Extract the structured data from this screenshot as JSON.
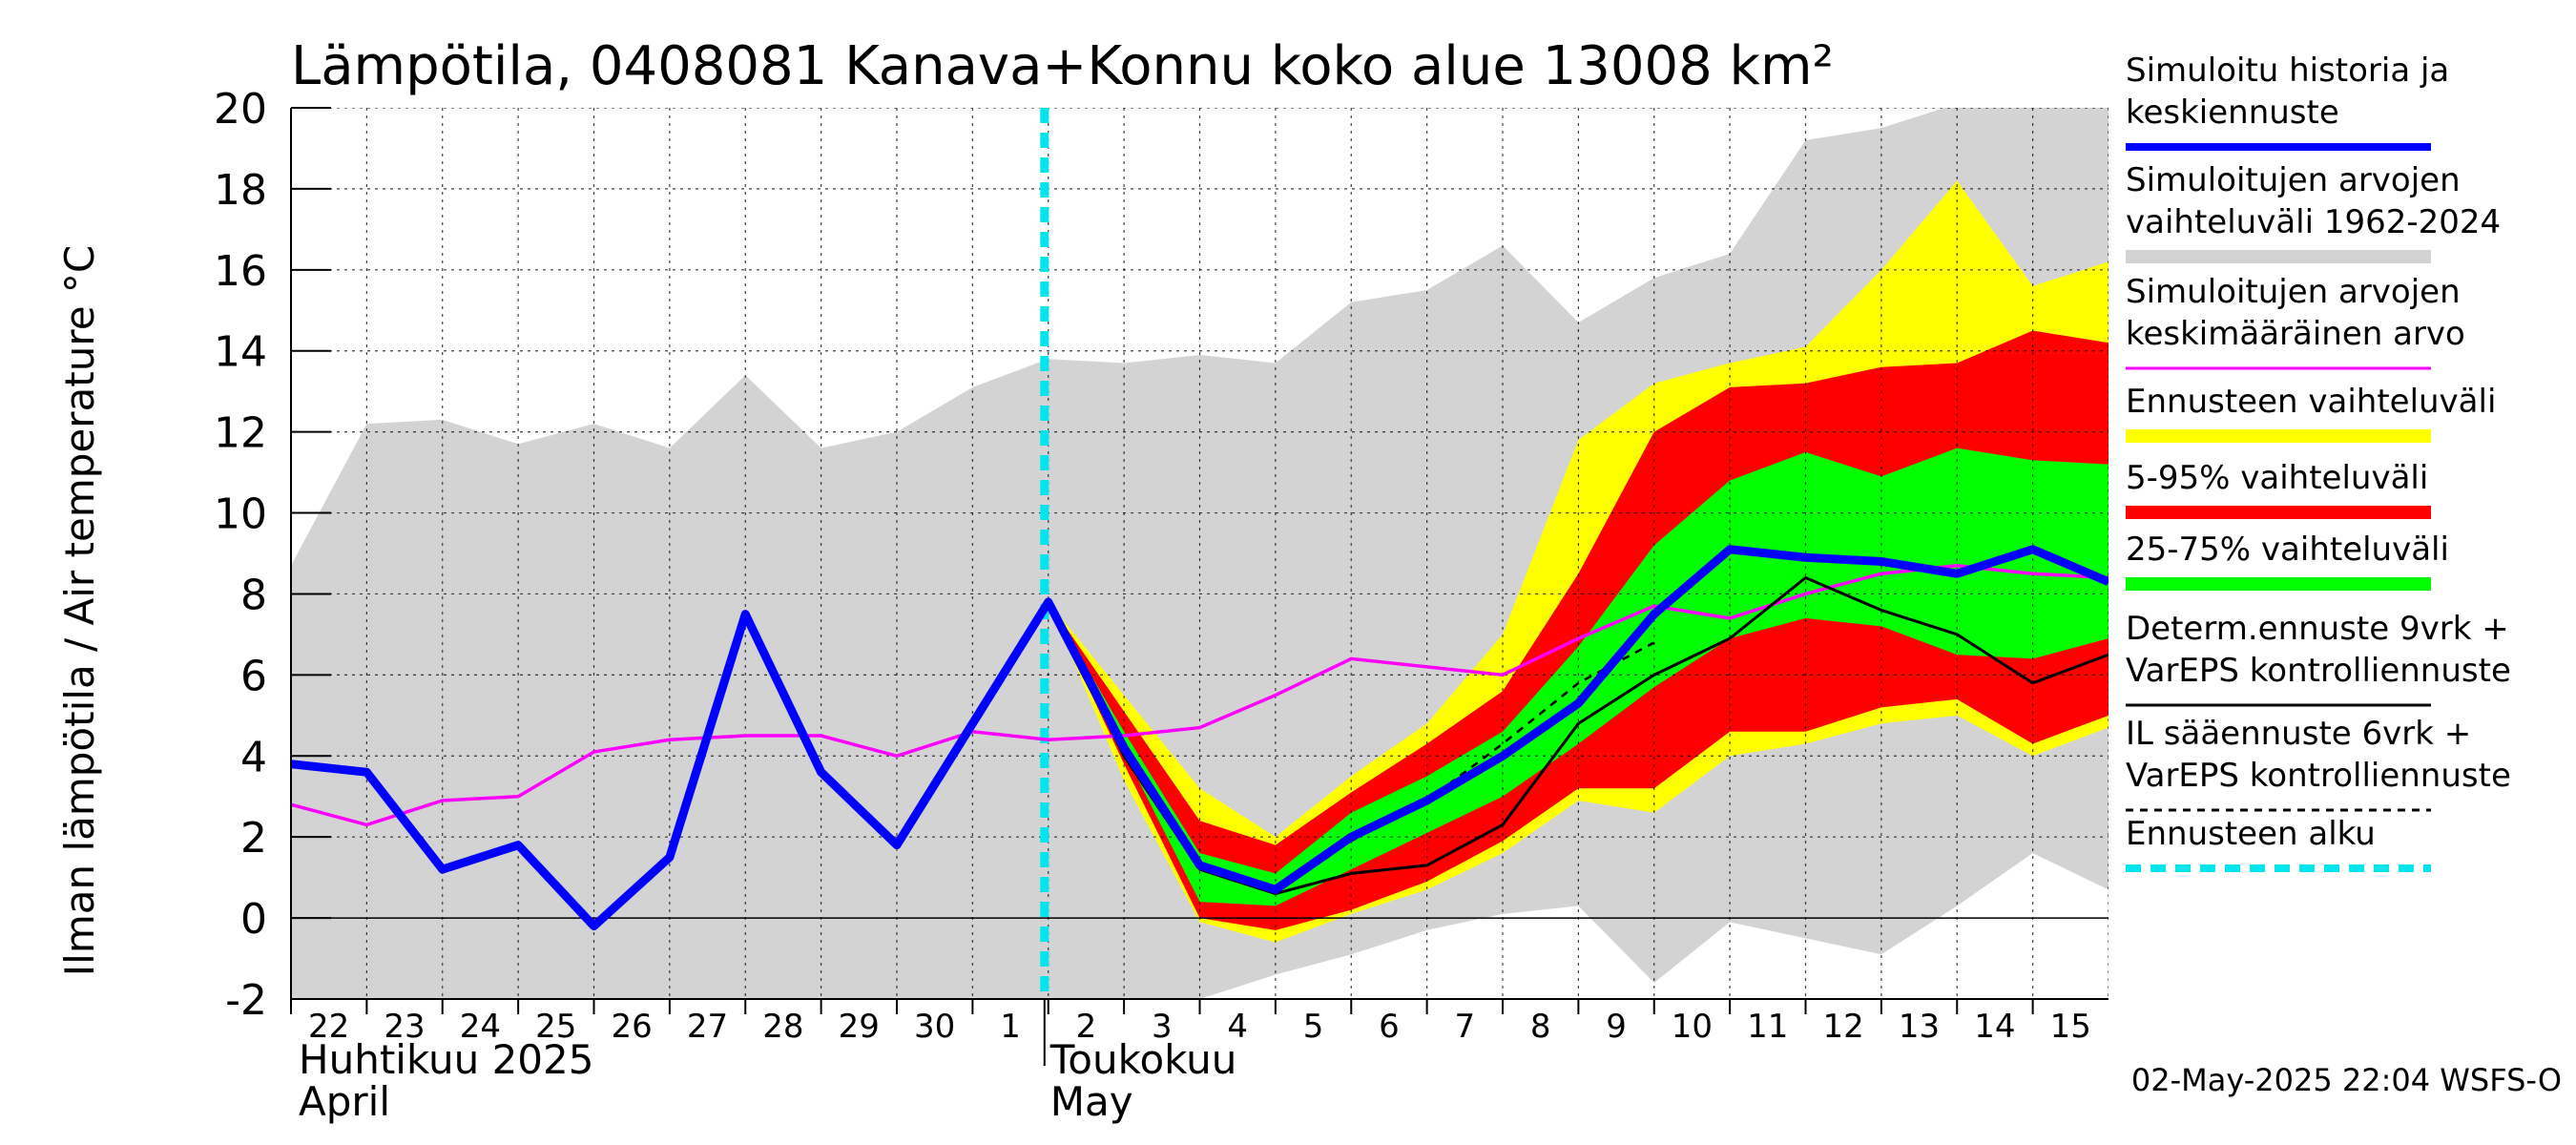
{
  "chart_data": {
    "type": "area",
    "title": "Lämpötila, 0408081 Kanava+Konnu koko alue 13008 km²",
    "ylabel": "Ilman lämpötila / Air temperature   °C",
    "ylim": [
      -2,
      20
    ],
    "yticks": [
      -2,
      0,
      2,
      4,
      6,
      8,
      10,
      12,
      14,
      16,
      18,
      20
    ],
    "x_days": [
      "22",
      "23",
      "24",
      "25",
      "26",
      "27",
      "28",
      "29",
      "30",
      "1",
      "2",
      "3",
      "4",
      "5",
      "6",
      "7",
      "8",
      "9",
      "10",
      "11",
      "12",
      "13",
      "14",
      "15"
    ],
    "month_labels": [
      {
        "line1": "Huhtikuu  2025",
        "line2": "April",
        "at_day": 0
      },
      {
        "line1": "Toukokuu",
        "line2": "May",
        "at_day": 10
      }
    ],
    "forecast_start_day": 10,
    "series": [
      {
        "name": "Simuloitujen arvojen vaihteluväli 1962-2024",
        "color": "#d3d3d3",
        "kind": "band",
        "x": [
          0,
          1,
          2,
          3,
          4,
          5,
          6,
          7,
          8,
          9,
          10,
          11,
          12,
          13,
          14,
          15,
          16,
          17,
          18,
          19,
          20,
          21,
          22,
          23,
          24
        ],
        "lower": [
          -2,
          -2,
          -2,
          -2,
          -2,
          -2,
          -2,
          -2,
          -2,
          -2,
          -2,
          -2,
          -2,
          -1.4,
          -0.9,
          -0.3,
          0.1,
          0.3,
          -1.6,
          -0.1,
          -0.5,
          -0.9,
          0.3,
          1.6,
          0.7
        ],
        "upper": [
          8.7,
          12.2,
          12.3,
          11.7,
          12.2,
          11.6,
          13.4,
          11.6,
          12.0,
          13.1,
          13.8,
          13.7,
          13.9,
          13.7,
          15.2,
          15.5,
          16.6,
          14.7,
          15.8,
          16.4,
          19.2,
          19.5,
          20.1,
          20.1,
          20.1
        ]
      },
      {
        "name": "Ennusteen vaihteluväli",
        "color": "#ffff00",
        "kind": "band",
        "x": [
          10,
          11,
          12,
          13,
          14,
          15,
          16,
          17,
          18,
          19,
          20,
          21,
          22,
          23,
          24
        ],
        "lower": [
          7.8,
          3.4,
          -0.1,
          -0.6,
          0.1,
          0.7,
          1.6,
          2.9,
          2.6,
          4.0,
          4.3,
          4.8,
          5.0,
          4.0,
          4.7
        ],
        "upper": [
          7.8,
          5.5,
          3.2,
          2.0,
          3.5,
          4.8,
          7.0,
          11.8,
          13.2,
          13.7,
          14.1,
          16.0,
          18.2,
          15.6,
          16.2
        ]
      },
      {
        "name": "5-95% vaihteluväli",
        "color": "#ff0000",
        "kind": "band",
        "x": [
          10,
          11,
          12,
          13,
          14,
          15,
          16,
          17,
          18,
          19,
          20,
          21,
          22,
          23,
          24
        ],
        "lower": [
          7.8,
          3.8,
          0.0,
          -0.3,
          0.2,
          0.9,
          1.9,
          3.2,
          3.2,
          4.6,
          4.6,
          5.2,
          5.4,
          4.3,
          5.0
        ],
        "upper": [
          7.8,
          5.1,
          2.4,
          1.8,
          3.1,
          4.3,
          5.6,
          8.5,
          12.0,
          13.1,
          13.2,
          13.6,
          13.7,
          14.5,
          14.2
        ]
      },
      {
        "name": "25-75% vaihteluväli",
        "color": "#00ff00",
        "kind": "band",
        "x": [
          10,
          11,
          12,
          13,
          14,
          15,
          16,
          17,
          18,
          19,
          20,
          21,
          22,
          23,
          24
        ],
        "lower": [
          7.8,
          4.1,
          0.4,
          0.3,
          1.2,
          2.1,
          3.0,
          4.3,
          5.7,
          6.9,
          7.4,
          7.2,
          6.5,
          6.4,
          6.9
        ],
        "upper": [
          7.8,
          4.6,
          1.6,
          1.1,
          2.6,
          3.5,
          4.6,
          6.7,
          9.2,
          10.8,
          11.5,
          10.9,
          11.6,
          11.3,
          11.2
        ]
      },
      {
        "name": "Simuloitujen arvojen keskimääräinen arvo",
        "color": "#ff00ff",
        "kind": "line",
        "x": [
          0,
          1,
          2,
          3,
          4,
          5,
          6,
          7,
          8,
          9,
          10,
          11,
          12,
          13,
          14,
          15,
          16,
          17,
          18,
          19,
          20,
          21,
          22,
          23,
          24
        ],
        "values": [
          2.8,
          2.3,
          2.9,
          3.0,
          4.1,
          4.4,
          4.5,
          4.5,
          4.0,
          4.6,
          4.4,
          4.5,
          4.7,
          5.5,
          6.4,
          6.2,
          6.0,
          6.9,
          7.7,
          7.4,
          8.0,
          8.5,
          8.7,
          8.5,
          8.4
        ]
      },
      {
        "name": "Determ.ennuste 9vrk + VarEPS kontrolliennuste",
        "color": "#000000",
        "kind": "line",
        "x": [
          10,
          11,
          12,
          13,
          14,
          15,
          16,
          17,
          18,
          19,
          20,
          21,
          22,
          23,
          24
        ],
        "values": [
          7.8,
          4.0,
          1.2,
          0.6,
          1.1,
          1.3,
          2.3,
          4.8,
          6.0,
          6.9,
          8.4,
          7.6,
          7.0,
          5.8,
          6.5
        ]
      },
      {
        "name": "IL sääennuste 6vrk + VarEPS kontrolliennuste",
        "color": "#000000",
        "kind": "dashed",
        "x": [
          10,
          11,
          12,
          13,
          14,
          15,
          16,
          17,
          18
        ],
        "values": [
          7.8,
          4.1,
          1.3,
          0.7,
          1.9,
          2.9,
          4.3,
          5.8,
          6.8
        ]
      },
      {
        "name": "Simuloitu historia ja keskiennuste",
        "color": "#0000ff",
        "kind": "line",
        "x": [
          0,
          1,
          2,
          3,
          4,
          5,
          6,
          7,
          8,
          9,
          10,
          11,
          12,
          13,
          14,
          15,
          16,
          17,
          18,
          19,
          20,
          21,
          22,
          23,
          24
        ],
        "values": [
          3.8,
          3.6,
          1.2,
          1.8,
          -0.2,
          1.5,
          7.5,
          3.6,
          1.8,
          4.8,
          7.8,
          4.2,
          1.3,
          0.7,
          2.0,
          2.9,
          4.0,
          5.3,
          7.5,
          9.1,
          8.9,
          8.8,
          8.5,
          9.1,
          8.3
        ]
      }
    ]
  },
  "legend": [
    {
      "label_lines": [
        "Simuloitu historia ja",
        "keskiennuste"
      ],
      "color": "#0000ff",
      "style": "thick"
    },
    {
      "label_lines": [
        "Simuloitujen arvojen",
        "vaihteluväli 1962-2024"
      ],
      "color": "#d3d3d3",
      "style": "band"
    },
    {
      "label_lines": [
        "Simuloitujen arvojen",
        "keskimääräinen arvo"
      ],
      "color": "#ff00ff",
      "style": "thin"
    },
    {
      "label_lines": [
        "Ennusteen vaihteluväli"
      ],
      "color": "#ffff00",
      "style": "band"
    },
    {
      "label_lines": [
        "5-95% vaihteluväli"
      ],
      "color": "#ff0000",
      "style": "band"
    },
    {
      "label_lines": [
        "25-75% vaihteluväli"
      ],
      "color": "#00ff00",
      "style": "band"
    },
    {
      "label_lines": [
        "Determ.ennuste 9vrk +",
        "VarEPS kontrolliennuste"
      ],
      "color": "#000000",
      "style": "thin"
    },
    {
      "label_lines": [
        "IL sääennuste 6vrk  +",
        "  VarEPS kontrolliennuste"
      ],
      "color": "#000000",
      "style": "dashed"
    },
    {
      "label_lines": [
        "Ennusteen alku"
      ],
      "color": "#00e5ee",
      "style": "cyan-dash"
    }
  ],
  "timestamp": "02-May-2025 22:04 WSFS-O"
}
